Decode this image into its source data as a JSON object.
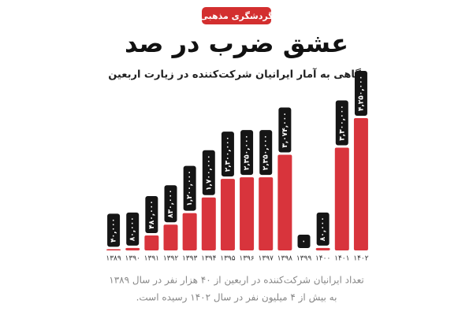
{
  "chart_data": {
    "type": "bar",
    "tag": "گردشگری مذهبی",
    "title": "عشق ضرب در صد",
    "subtitle": "نگاهی به آمار ایرانیان شرکت‌کننده در زیارت اربعین",
    "categories": [
      "۱۳۸۹",
      "۱۳۹۰",
      "۱۳۹۱",
      "۱۳۹۲",
      "۱۳۹۳",
      "۱۳۹۴",
      "۱۳۹۵",
      "۱۳۹۶",
      "۱۳۹۷",
      "۱۳۹۸",
      "۱۳۹۹",
      "۱۴۰۰",
      "۱۴۰۱",
      "۱۴۰۲"
    ],
    "values": [
      40000,
      80000,
      480000,
      830000,
      1200000,
      1700000,
      2300000,
      2350000,
      2350000,
      3074000,
      0,
      80000,
      3300000,
      4250000
    ],
    "value_labels": [
      "۴۰,۰۰۰",
      "۸۰,۰۰۰",
      "۴۸۰,۰۰۰",
      "۸۳۰,۰۰۰",
      "۱,۲۰۰,۰۰۰",
      "۱,۷۰۰,۰۰۰",
      "۲,۳۰۰,۰۰۰",
      "۲,۳۵۰,۰۰۰",
      "۲,۳۵۰,۰۰۰",
      "۳,۰۷۴,۰۰۰",
      "۰",
      "۸۰,۰۰۰",
      "۳,۳۰۰,۰۰۰",
      "۴,۲۵۰,۰۰۰"
    ],
    "color": "#d8343c",
    "notes": [
      "تعداد ایرانیان شرکت‌کننده در اربعین از ۴۰ هزار نفر در سال ۱۳۸۹",
      "به بیش از ۴ میلیون نفر در سال ۱۴۰۲ رسیده است."
    ]
  }
}
